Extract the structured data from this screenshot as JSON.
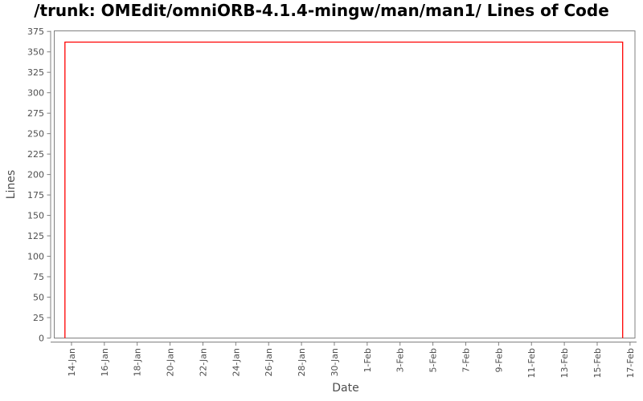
{
  "page": {
    "background": "#ffffff"
  },
  "chart_data": {
    "type": "line",
    "title": "/trunk: OMEdit/omniORB-4.1.4-mingw/man/man1/ Lines of Code",
    "xlabel": "Date",
    "ylabel": "Lines",
    "grid": false,
    "legend": false,
    "axis_color": "#808080",
    "tick_label_color": "#4f4f4f",
    "plot_background": "#ffffff",
    "ylim": [
      0,
      375
    ],
    "ytick_step": 25,
    "yticks": [
      0,
      25,
      50,
      75,
      100,
      125,
      150,
      175,
      200,
      225,
      250,
      275,
      300,
      325,
      350,
      375
    ],
    "xticks": [
      "14-Jan",
      "16-Jan",
      "18-Jan",
      "20-Jan",
      "22-Jan",
      "24-Jan",
      "26-Jan",
      "28-Jan",
      "30-Jan",
      "1-Feb",
      "3-Feb",
      "5-Feb",
      "7-Feb",
      "9-Feb",
      "11-Feb",
      "13-Feb",
      "15-Feb",
      "17-Feb"
    ],
    "xlim_days": [
      12.95,
      48.3
    ],
    "plateau_value": 362,
    "series": [
      {
        "name": "Lines of Code",
        "color": "#ff0000",
        "style": "step",
        "points": [
          {
            "date": "13-Jan",
            "day": 13.6,
            "value": 0
          },
          {
            "date": "13-Jan",
            "day": 13.6,
            "value": 362
          },
          {
            "date": "16-Feb",
            "day": 47.55,
            "value": 362
          },
          {
            "date": "16-Feb",
            "day": 47.55,
            "value": 0
          }
        ]
      }
    ]
  }
}
